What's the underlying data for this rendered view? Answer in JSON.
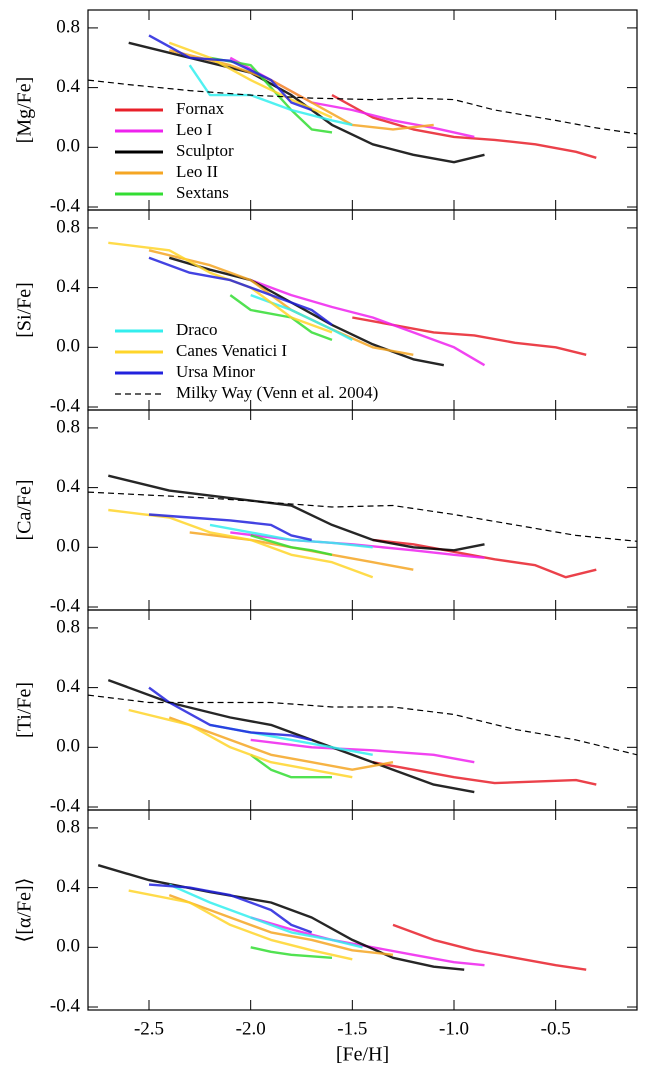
{
  "chart_data": [
    {
      "type": "line",
      "y_label": "[Mg/Fe]",
      "xlim": [
        -2.8,
        -0.1
      ],
      "ylim": [
        -0.42,
        0.92
      ],
      "yticks": [
        0.8,
        0.4,
        {
          "value": 0.0,
          "label": "0.0"
        },
        -0.4
      ],
      "legend": "lower left",
      "series": [
        {
          "name": "Fornax",
          "color": "#e8202a",
          "x": [
            -1.6,
            -1.4,
            -1.2,
            -1.0,
            -0.8,
            -0.6,
            -0.4,
            -0.3
          ],
          "values": [
            0.35,
            0.2,
            0.12,
            0.07,
            0.05,
            0.02,
            -0.03,
            -0.07
          ]
        },
        {
          "name": "Leo I",
          "color": "#ee22ee",
          "x": [
            -2.1,
            -1.9,
            -1.7,
            -1.5,
            -1.3,
            -1.1,
            -0.9
          ],
          "values": [
            0.6,
            0.45,
            0.3,
            0.25,
            0.18,
            0.13,
            0.07
          ]
        },
        {
          "name": "Sculptor",
          "color": "#000000",
          "x": [
            -2.6,
            -2.3,
            -2.0,
            -1.8,
            -1.6,
            -1.4,
            -1.2,
            -1.0,
            -0.85
          ],
          "values": [
            0.7,
            0.6,
            0.5,
            0.35,
            0.15,
            0.02,
            -0.05,
            -0.1,
            -0.05
          ]
        },
        {
          "name": "Leo II",
          "color": "#f5a623",
          "x": [
            -2.4,
            -2.1,
            -1.9,
            -1.7,
            -1.5,
            -1.3,
            -1.1
          ],
          "values": [
            0.65,
            0.55,
            0.45,
            0.3,
            0.15,
            0.12,
            0.15
          ]
        },
        {
          "name": "Sextans",
          "color": "#33dd33",
          "x": [
            -2.2,
            -2.0,
            -1.9,
            -1.8,
            -1.7,
            -1.6
          ],
          "values": [
            0.6,
            0.55,
            0.4,
            0.25,
            0.12,
            0.1
          ]
        },
        {
          "color": "#33eeee",
          "x": [
            -2.3,
            -2.2,
            -2.0,
            -1.8,
            -1.6,
            -1.5
          ],
          "values": [
            0.55,
            0.35,
            0.35,
            0.25,
            0.18,
            0.15
          ]
        },
        {
          "color": "#ffd52a",
          "x": [
            -2.4,
            -2.2,
            -2.0,
            -1.8,
            -1.6
          ],
          "values": [
            0.7,
            0.6,
            0.45,
            0.32,
            0.2
          ]
        },
        {
          "color": "#2222dd",
          "x": [
            -2.5,
            -2.3,
            -2.1,
            -1.9,
            -1.8,
            -1.7
          ],
          "values": [
            0.75,
            0.6,
            0.58,
            0.45,
            0.3,
            0.25
          ]
        },
        {
          "color": "#000000",
          "dashed": true,
          "x": [
            -2.8,
            -2.6,
            -2.3,
            -2.0,
            -1.7,
            -1.4,
            -1.2,
            -1.0,
            -0.8,
            -0.5,
            -0.3,
            -0.1
          ],
          "values": [
            0.45,
            0.42,
            0.38,
            0.35,
            0.33,
            0.32,
            0.33,
            0.32,
            0.25,
            0.18,
            0.13,
            0.09
          ]
        }
      ]
    },
    {
      "type": "line",
      "y_label": "[Si/Fe]",
      "xlim": [
        -2.8,
        -0.1
      ],
      "ylim": [
        -0.42,
        0.92
      ],
      "yticks": [
        0.8,
        0.4,
        {
          "value": 0.0,
          "label": "0.0"
        },
        -0.4
      ],
      "legend": "lower left",
      "series": [
        {
          "color": "#e8202a",
          "x": [
            -1.5,
            -1.3,
            -1.1,
            -0.9,
            -0.7,
            -0.5,
            -0.35
          ],
          "values": [
            0.2,
            0.15,
            0.1,
            0.08,
            0.03,
            0.0,
            -0.05
          ]
        },
        {
          "color": "#ee22ee",
          "x": [
            -2.0,
            -1.8,
            -1.6,
            -1.4,
            -1.2,
            -1.0,
            -0.85
          ],
          "values": [
            0.45,
            0.35,
            0.27,
            0.2,
            0.1,
            0.0,
            -0.12
          ]
        },
        {
          "color": "#000000",
          "x": [
            -2.4,
            -2.2,
            -2.0,
            -1.8,
            -1.6,
            -1.4,
            -1.2,
            -1.05
          ],
          "values": [
            0.6,
            0.52,
            0.45,
            0.3,
            0.15,
            0.02,
            -0.08,
            -0.12
          ]
        },
        {
          "color": "#f5a623",
          "x": [
            -2.5,
            -2.2,
            -2.0,
            -1.8,
            -1.6,
            -1.4,
            -1.2
          ],
          "values": [
            0.65,
            0.55,
            0.45,
            0.25,
            0.12,
            0.0,
            -0.05
          ]
        },
        {
          "color": "#33dd33",
          "x": [
            -2.1,
            -2.0,
            -1.8,
            -1.7,
            -1.6
          ],
          "values": [
            0.35,
            0.25,
            0.2,
            0.1,
            0.05
          ]
        },
        {
          "name": "Draco",
          "color": "#33eeee",
          "x": [
            -2.0,
            -1.8,
            -1.6,
            -1.5
          ],
          "values": [
            0.35,
            0.25,
            0.12,
            0.05
          ]
        },
        {
          "name": "Canes Venatici I",
          "color": "#ffd52a",
          "x": [
            -2.7,
            -2.4,
            -2.2,
            -2.0,
            -1.8,
            -1.6
          ],
          "values": [
            0.7,
            0.65,
            0.5,
            0.4,
            0.2,
            0.1
          ]
        },
        {
          "name": "Ursa Minor",
          "color": "#2222dd",
          "x": [
            -2.5,
            -2.3,
            -2.1,
            -1.9,
            -1.7,
            -1.6
          ],
          "values": [
            0.6,
            0.5,
            0.45,
            0.35,
            0.25,
            0.15
          ]
        },
        {
          "name": "Milky Way (Venn et al. 2004)",
          "color": "#000000",
          "dashed": true,
          "x": [],
          "values": []
        }
      ]
    },
    {
      "type": "line",
      "y_label": "[Ca/Fe]",
      "xlim": [
        -2.8,
        -0.1
      ],
      "ylim": [
        -0.42,
        0.92
      ],
      "yticks": [
        0.8,
        0.4,
        {
          "value": 0.0,
          "label": "0.0"
        },
        -0.4
      ],
      "series": [
        {
          "color": "#e8202a",
          "x": [
            -1.4,
            -1.2,
            -1.0,
            -0.8,
            -0.6,
            -0.45,
            -0.3
          ],
          "values": [
            0.05,
            0.02,
            -0.03,
            -0.08,
            -0.12,
            -0.2,
            -0.15
          ]
        },
        {
          "color": "#ee22ee",
          "x": [
            -2.1,
            -1.8,
            -1.5,
            -1.2,
            -1.0,
            -0.85
          ],
          "values": [
            0.1,
            0.05,
            0.02,
            -0.02,
            -0.05,
            -0.07
          ]
        },
        {
          "color": "#000000",
          "x": [
            -2.7,
            -2.4,
            -2.1,
            -1.8,
            -1.6,
            -1.4,
            -1.2,
            -1.0,
            -0.85
          ],
          "values": [
            0.48,
            0.38,
            0.33,
            0.28,
            0.15,
            0.05,
            0.0,
            -0.02,
            0.02
          ]
        },
        {
          "color": "#f5a623",
          "x": [
            -2.3,
            -2.0,
            -1.8,
            -1.6,
            -1.4,
            -1.2
          ],
          "values": [
            0.1,
            0.05,
            0.0,
            -0.05,
            -0.1,
            -0.15
          ]
        },
        {
          "color": "#33dd33",
          "x": [
            -2.0,
            -1.8,
            -1.7,
            -1.6
          ],
          "values": [
            0.08,
            0.0,
            -0.02,
            -0.05
          ]
        },
        {
          "color": "#33eeee",
          "x": [
            -2.2,
            -2.0,
            -1.8,
            -1.6,
            -1.4
          ],
          "values": [
            0.15,
            0.1,
            0.05,
            0.03,
            0.0
          ]
        },
        {
          "color": "#ffd52a",
          "x": [
            -2.7,
            -2.4,
            -2.2,
            -2.0,
            -1.8,
            -1.6,
            -1.4
          ],
          "values": [
            0.25,
            0.2,
            0.1,
            0.05,
            -0.05,
            -0.1,
            -0.2
          ]
        },
        {
          "color": "#2222dd",
          "x": [
            -2.5,
            -2.3,
            -2.1,
            -1.9,
            -1.8,
            -1.7
          ],
          "values": [
            0.22,
            0.2,
            0.18,
            0.15,
            0.08,
            0.05
          ]
        },
        {
          "color": "#000000",
          "dashed": true,
          "x": [
            -2.8,
            -2.5,
            -2.2,
            -1.9,
            -1.6,
            -1.3,
            -1.0,
            -0.7,
            -0.4,
            -0.1
          ],
          "values": [
            0.37,
            0.35,
            0.33,
            0.3,
            0.27,
            0.28,
            0.22,
            0.15,
            0.08,
            0.04
          ]
        }
      ]
    },
    {
      "type": "line",
      "y_label": "[Ti/Fe]",
      "xlim": [
        -2.8,
        -0.1
      ],
      "ylim": [
        -0.42,
        0.92
      ],
      "yticks": [
        0.8,
        0.4,
        {
          "value": 0.0,
          "label": "0.0"
        },
        -0.4
      ],
      "series": [
        {
          "color": "#e8202a",
          "x": [
            -1.4,
            -1.2,
            -1.0,
            -0.8,
            -0.6,
            -0.4,
            -0.3
          ],
          "values": [
            -0.1,
            -0.15,
            -0.2,
            -0.24,
            -0.23,
            -0.22,
            -0.25
          ]
        },
        {
          "color": "#ee22ee",
          "x": [
            -2.0,
            -1.7,
            -1.4,
            -1.1,
            -0.9
          ],
          "values": [
            0.05,
            0.0,
            -0.02,
            -0.05,
            -0.1
          ]
        },
        {
          "color": "#000000",
          "x": [
            -2.7,
            -2.4,
            -2.1,
            -1.9,
            -1.7,
            -1.5,
            -1.3,
            -1.1,
            -0.9
          ],
          "values": [
            0.45,
            0.3,
            0.2,
            0.15,
            0.05,
            -0.05,
            -0.15,
            -0.25,
            -0.3
          ]
        },
        {
          "color": "#f5a623",
          "x": [
            -2.4,
            -2.1,
            -1.9,
            -1.7,
            -1.5,
            -1.3
          ],
          "values": [
            0.2,
            0.05,
            -0.05,
            -0.1,
            -0.15,
            -0.1
          ]
        },
        {
          "color": "#33dd33",
          "x": [
            -2.0,
            -1.9,
            -1.8,
            -1.6
          ],
          "values": [
            -0.05,
            -0.15,
            -0.2,
            -0.2
          ]
        },
        {
          "color": "#33eeee",
          "x": [
            -2.2,
            -2.0,
            -1.8,
            -1.6,
            -1.4
          ],
          "values": [
            0.15,
            0.1,
            0.05,
            0.0,
            -0.05
          ]
        },
        {
          "color": "#ffd52a",
          "x": [
            -2.6,
            -2.3,
            -2.1,
            -1.9,
            -1.7,
            -1.5
          ],
          "values": [
            0.25,
            0.15,
            0.0,
            -0.1,
            -0.15,
            -0.2
          ]
        },
        {
          "color": "#2222dd",
          "x": [
            -2.5,
            -2.4,
            -2.2,
            -2.0,
            -1.8,
            -1.7
          ],
          "values": [
            0.4,
            0.3,
            0.15,
            0.1,
            0.08,
            0.05
          ]
        },
        {
          "color": "#000000",
          "dashed": true,
          "x": [
            -2.8,
            -2.5,
            -2.2,
            -1.9,
            -1.6,
            -1.3,
            -1.0,
            -0.7,
            -0.4,
            -0.1
          ],
          "values": [
            0.35,
            0.3,
            0.3,
            0.3,
            0.27,
            0.27,
            0.22,
            0.12,
            0.05,
            -0.05
          ]
        }
      ]
    },
    {
      "type": "line",
      "y_label": "⟨[α/Fe]⟩",
      "x_label": "[Fe/H]",
      "xlim": [
        -2.8,
        -0.1
      ],
      "ylim": [
        -0.42,
        0.92
      ],
      "xticks": [
        -2.5,
        {
          "value": -2.0,
          "label": "-2.0"
        },
        -1.5,
        {
          "value": -1.0,
          "label": "-1.0"
        },
        -0.5
      ],
      "yticks": [
        0.8,
        0.4,
        {
          "value": 0.0,
          "label": "0.0"
        },
        -0.4
      ],
      "series": [
        {
          "color": "#e8202a",
          "x": [
            -1.3,
            -1.1,
            -0.9,
            -0.7,
            -0.5,
            -0.35
          ],
          "values": [
            0.15,
            0.05,
            -0.02,
            -0.07,
            -0.12,
            -0.15
          ]
        },
        {
          "color": "#ee22ee",
          "x": [
            -2.0,
            -1.8,
            -1.6,
            -1.4,
            -1.2,
            -1.0,
            -0.85
          ],
          "values": [
            0.2,
            0.12,
            0.05,
            0.0,
            -0.05,
            -0.1,
            -0.12
          ]
        },
        {
          "color": "#000000",
          "x": [
            -2.75,
            -2.5,
            -2.2,
            -1.9,
            -1.7,
            -1.5,
            -1.3,
            -1.1,
            -0.95
          ],
          "values": [
            0.55,
            0.45,
            0.37,
            0.3,
            0.2,
            0.05,
            -0.07,
            -0.13,
            -0.15
          ]
        },
        {
          "color": "#f5a623",
          "x": [
            -2.4,
            -2.1,
            -1.9,
            -1.7,
            -1.5,
            -1.3
          ],
          "values": [
            0.35,
            0.2,
            0.1,
            0.05,
            -0.02,
            -0.05
          ]
        },
        {
          "color": "#33dd33",
          "x": [
            -2.0,
            -1.9,
            -1.8,
            -1.6
          ],
          "values": [
            0.0,
            -0.03,
            -0.05,
            -0.07
          ]
        },
        {
          "color": "#33eeee",
          "x": [
            -2.4,
            -2.2,
            -2.0,
            -1.8,
            -1.6,
            -1.45
          ],
          "values": [
            0.42,
            0.3,
            0.2,
            0.1,
            0.05,
            0.0
          ]
        },
        {
          "color": "#ffd52a",
          "x": [
            -2.6,
            -2.3,
            -2.1,
            -1.9,
            -1.7,
            -1.5
          ],
          "values": [
            0.38,
            0.3,
            0.15,
            0.05,
            -0.02,
            -0.08
          ]
        },
        {
          "color": "#2222dd",
          "x": [
            -2.5,
            -2.3,
            -2.1,
            -1.9,
            -1.8,
            -1.7
          ],
          "values": [
            0.42,
            0.4,
            0.35,
            0.25,
            0.15,
            0.1
          ]
        }
      ]
    }
  ]
}
